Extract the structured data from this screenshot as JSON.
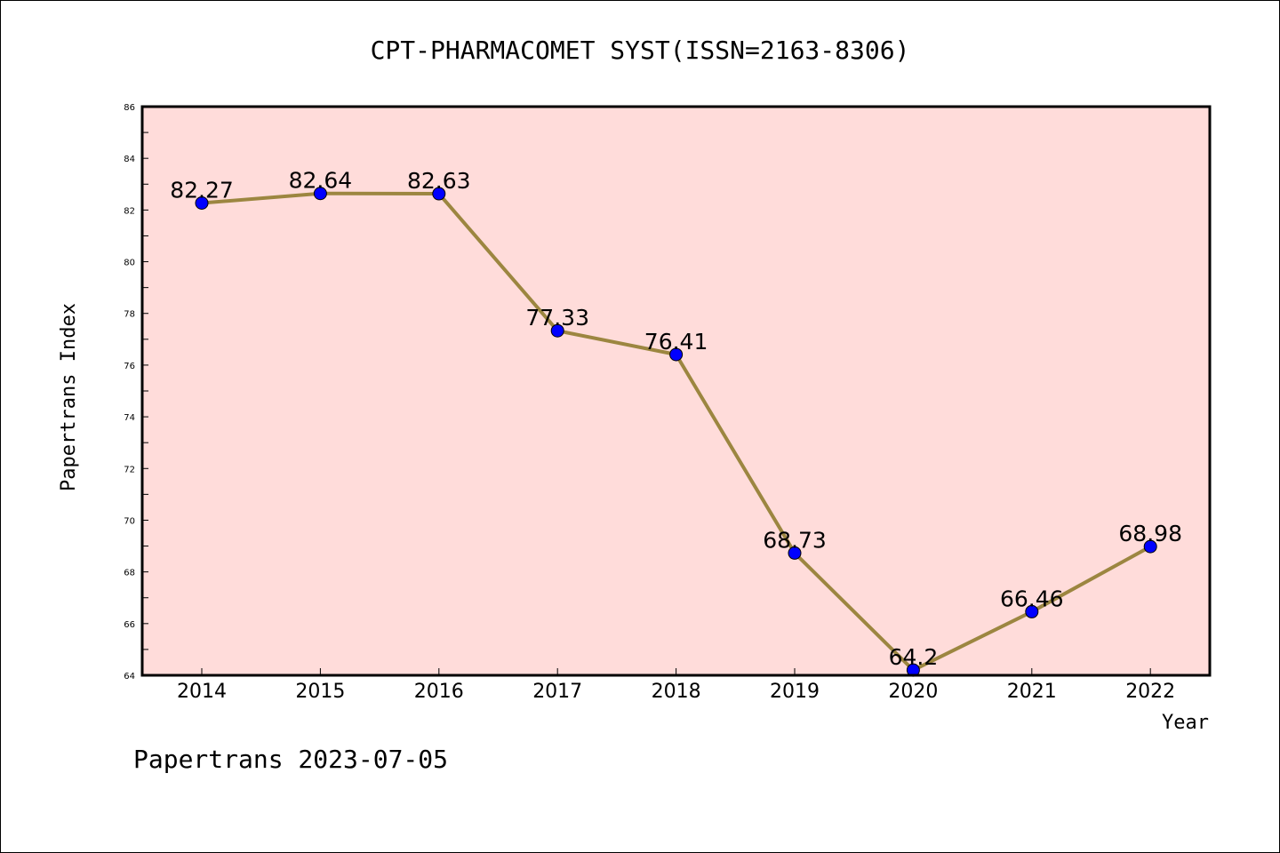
{
  "chart_data": {
    "type": "line",
    "title": "CPT-PHARMACOMET SYST(ISSN=2163-8306)",
    "xlabel": "Year",
    "ylabel": "Papertrans Index",
    "categories": [
      "2014",
      "2015",
      "2016",
      "2017",
      "2018",
      "2019",
      "2020",
      "2021",
      "2022"
    ],
    "values": [
      82.27,
      82.64,
      82.63,
      77.33,
      76.41,
      68.73,
      64.2,
      66.46,
      68.98
    ],
    "data_labels": [
      "82.27",
      "82.64",
      "82.63",
      "77.33",
      "76.41",
      "68.73",
      "64.2",
      "66.46",
      "68.98"
    ],
    "ylim": [
      64,
      86
    ],
    "yticks": [
      "64",
      "66",
      "68",
      "70",
      "72",
      "74",
      "76",
      "78",
      "80",
      "82",
      "84",
      "86"
    ],
    "grid": false,
    "legend": "none",
    "colors": {
      "plot_background": "#FFDCDA",
      "line": "#9C8640",
      "marker": "#0000FF"
    }
  },
  "footer": "Papertrans 2023-07-05"
}
